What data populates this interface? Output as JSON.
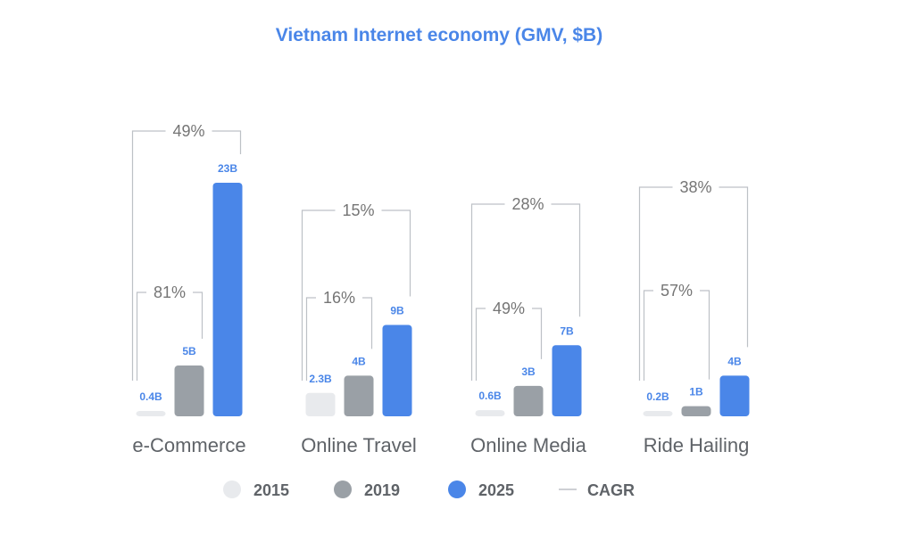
{
  "chart_data": {
    "type": "bar",
    "title": "Vietnam Internet economy (GMV, $B)",
    "categories": [
      "e-Commerce",
      "Online Travel",
      "Online Media",
      "Ride Hailing"
    ],
    "series": [
      {
        "name": "2015",
        "values": [
          0.4,
          2.3,
          0.6,
          0.2
        ],
        "labels": [
          "0.4B",
          "2.3B",
          "0.6B",
          "0.2B"
        ],
        "color": "#e8eaed"
      },
      {
        "name": "2019",
        "values": [
          5,
          4,
          3,
          1
        ],
        "labels": [
          "5B",
          "4B",
          "3B",
          "1B"
        ],
        "color": "#9aa0a6"
      },
      {
        "name": "2025",
        "values": [
          23,
          9,
          7,
          4
        ],
        "labels": [
          "23B",
          "9B",
          "7B",
          "4B"
        ],
        "color": "#4a86e8"
      }
    ],
    "cagr": {
      "name": "CAGR",
      "2015_2019": [
        "81%",
        "16%",
        "49%",
        "57%"
      ],
      "2015_2025": [
        "49%",
        "15%",
        "28%",
        "38%"
      ]
    },
    "legend_position": "bottom",
    "value_label_color": "#4a86e8",
    "grid": false
  }
}
